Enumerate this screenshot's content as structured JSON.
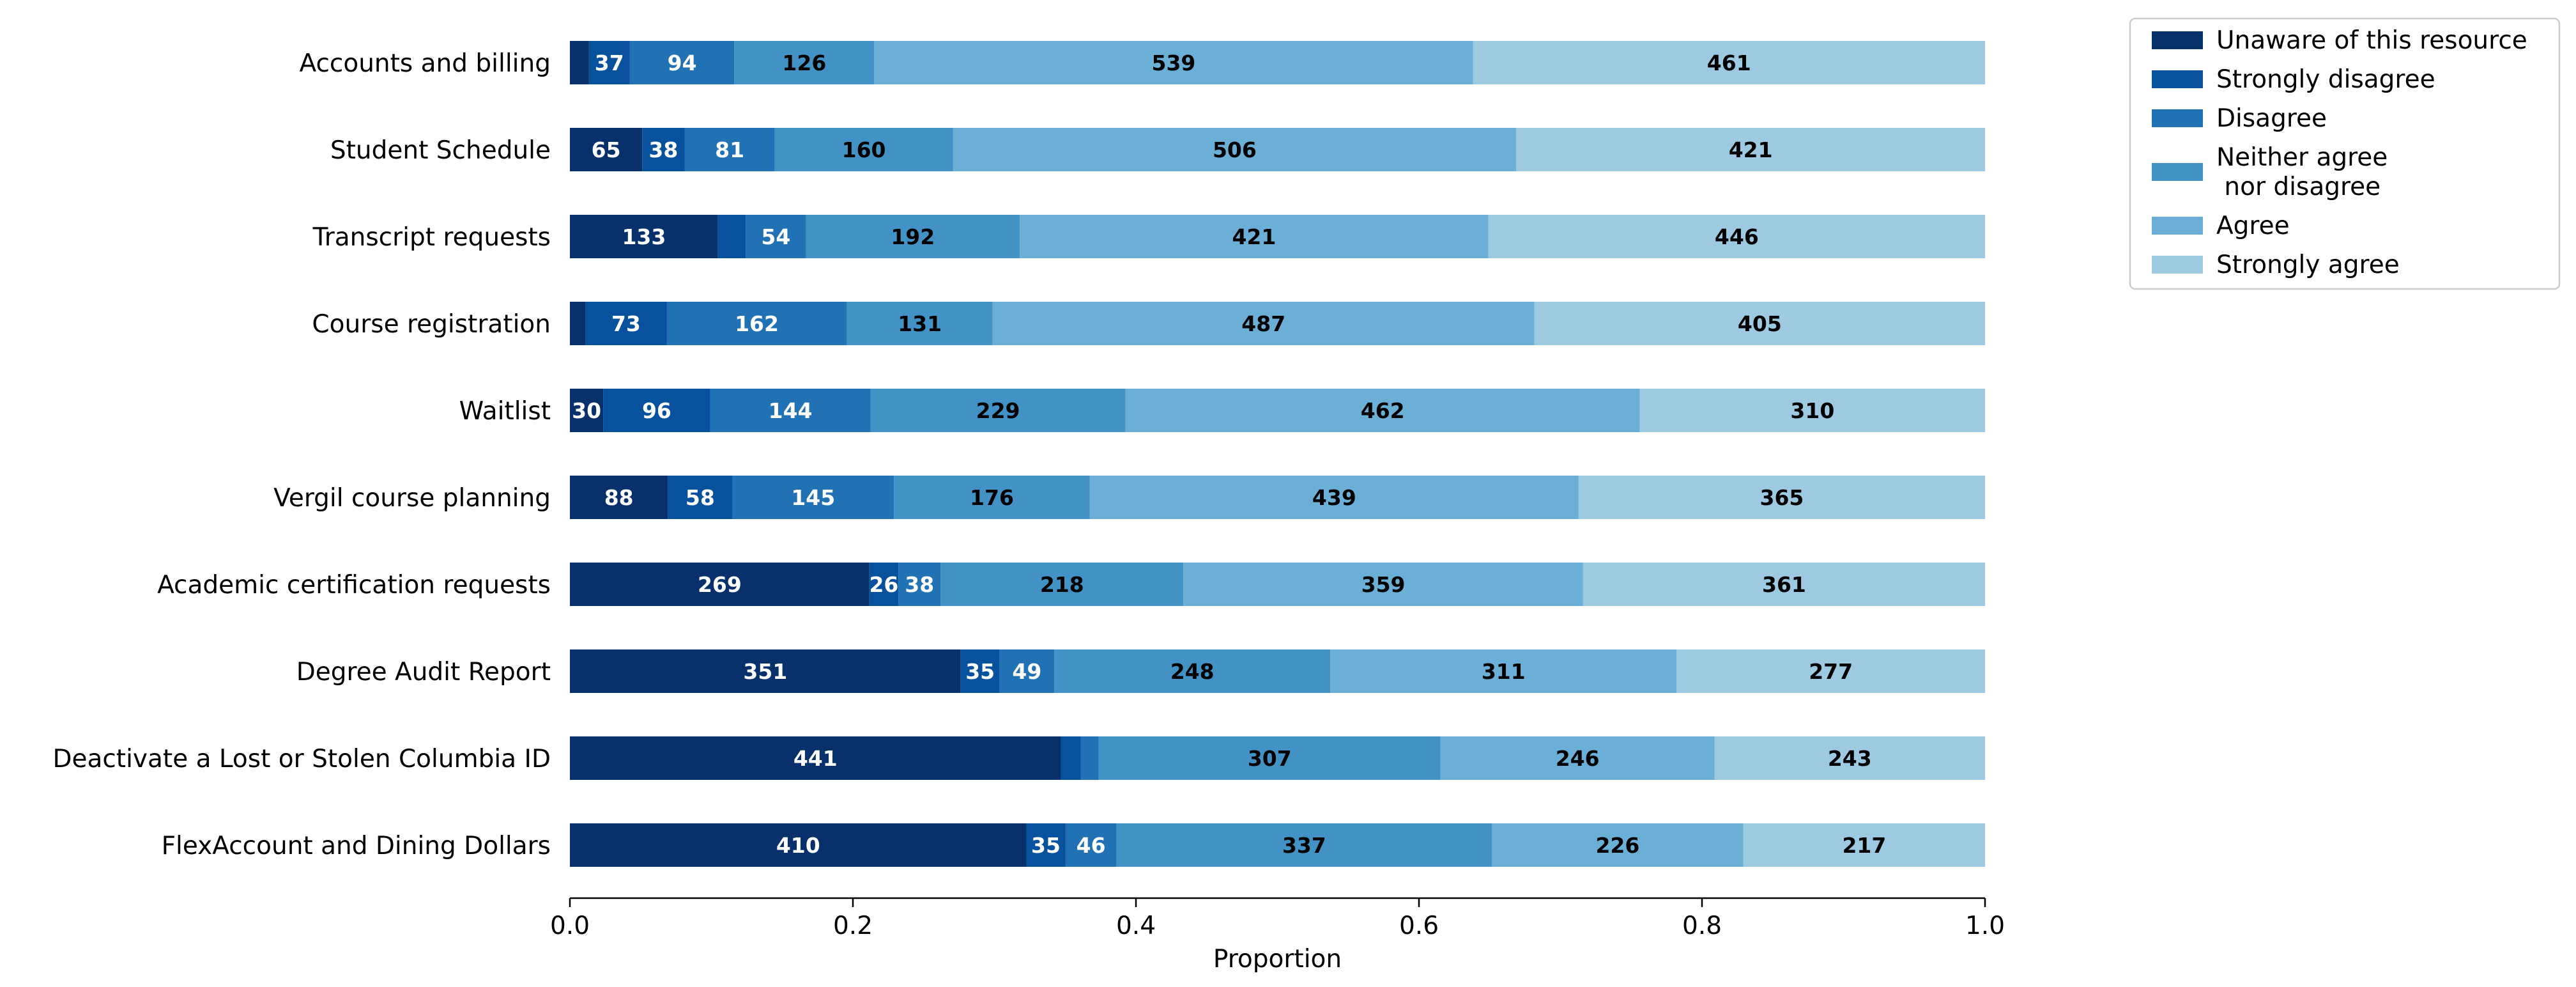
{
  "chart_data": {
    "type": "bar",
    "orientation": "horizontal",
    "stacked": true,
    "normalized": true,
    "categories": [
      "Accounts and billing",
      "Student Schedule",
      "Transcript requests",
      "Course registration",
      "Waitlist",
      "Vergil course planning",
      "Academic certification requests",
      "Degree Audit Report",
      "Deactivate a Lost or Stolen Columbia ID",
      "FlexAccount and Dining Dollars"
    ],
    "series": [
      {
        "name": "Unaware of this resource",
        "color": "#08306b",
        "values": [
          17,
          65,
          133,
          14,
          30,
          88,
          269,
          351,
          441,
          410
        ]
      },
      {
        "name": "Strongly disagree",
        "color": "#08519c",
        "values": [
          37,
          38,
          25,
          73,
          96,
          58,
          26,
          35,
          18,
          35
        ]
      },
      {
        "name": "Disagree",
        "color": "#2171b5",
        "values": [
          94,
          81,
          54,
          162,
          144,
          145,
          38,
          49,
          16,
          46
        ]
      },
      {
        "name": "Neither agree\n nor disagree",
        "color": "#4292c6",
        "values": [
          126,
          160,
          192,
          131,
          229,
          176,
          218,
          248,
          307,
          337
        ]
      },
      {
        "name": "Agree",
        "color": "#6baed6",
        "values": [
          539,
          506,
          421,
          487,
          462,
          439,
          359,
          311,
          246,
          226
        ]
      },
      {
        "name": "Strongly agree",
        "color": "#9ecae1",
        "values": [
          461,
          421,
          446,
          405,
          310,
          365,
          361,
          277,
          243,
          217
        ]
      }
    ],
    "xlabel": "Proportion",
    "xlim": [
      0,
      1
    ],
    "xticks": [
      "0.0",
      "0.2",
      "0.4",
      "0.6",
      "0.8",
      "1.0"
    ],
    "grid": false,
    "legend_position": "outside-top-right"
  }
}
